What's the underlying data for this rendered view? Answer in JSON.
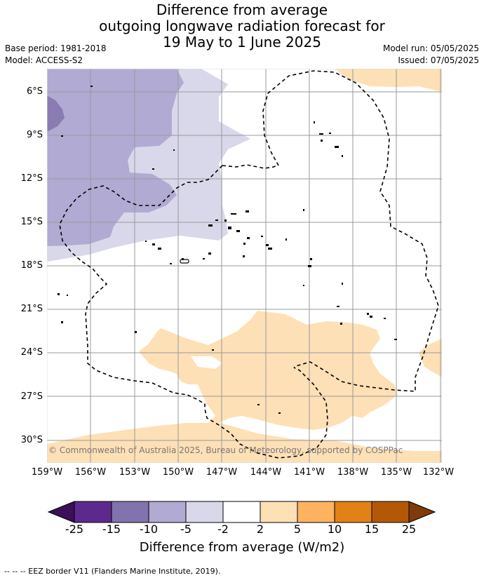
{
  "title": {
    "line1": "Difference from average",
    "line2": "outgoing longwave radiation forecast for",
    "line3": "19 May to 1 June 2025"
  },
  "meta": {
    "base_period": "Base period: 1981-2018",
    "model": "Model: ACCESS-S2",
    "model_run": "Model run: 05/05/2025",
    "issued": "Issued: 07/05/2025"
  },
  "map": {
    "lat_labels": [
      "6°S",
      "9°S",
      "12°S",
      "15°S",
      "18°S",
      "21°S",
      "24°S",
      "27°S",
      "30°S"
    ],
    "lon_labels": [
      "159°W",
      "156°W",
      "153°W",
      "150°W",
      "147°W",
      "144°W",
      "141°W",
      "138°W",
      "135°W",
      "132°W"
    ],
    "copyright": "© Commonwealth of Australia 2025, Bureau of Meteorology, supported by COSPPac",
    "colors": {
      "neg_15_10": "#8a7cb2",
      "neg_10_5": "#b1aad2",
      "neg_5_2": "#d9d8ea",
      "pos_2_5": "#fde0b6"
    }
  },
  "colorbar": {
    "ticks": [
      "-25",
      "-15",
      "-10",
      "-5",
      "-2",
      "2",
      "5",
      "10",
      "15",
      "25"
    ],
    "colors": [
      "#3b0f5a",
      "#5c2a8c",
      "#8273ae",
      "#b1aad2",
      "#d9d8ea",
      "#ffffff",
      "#fde0b6",
      "#fdb35f",
      "#e08214",
      "#b35806",
      "#7f3b08"
    ],
    "label": "Difference from average (W/m2)"
  },
  "footer": "--  --  -- EEZ border V11 (Flanders Marine Institute, 2019)."
}
